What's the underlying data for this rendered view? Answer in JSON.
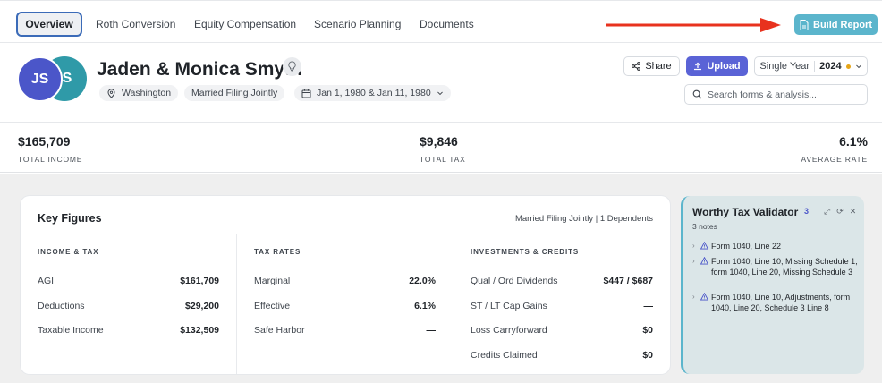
{
  "tabs": [
    "Overview",
    "Roth Conversion",
    "Equity Compensation",
    "Scenario Planning",
    "Documents"
  ],
  "build_report_label": "Build Report",
  "client": {
    "initials_a": "JS",
    "initials_b": "S",
    "name": "Jaden & Monica Smyth",
    "location": "Washington",
    "filing_status": "Married Filing Jointly",
    "dob": "Jan 1, 1980 & Jan 11, 1980"
  },
  "actions": {
    "share": "Share",
    "upload": "Upload",
    "year_mode": "Single Year",
    "year": "2024",
    "search_placeholder": "Search forms & analysis..."
  },
  "summary": [
    {
      "value": "$165,709",
      "label": "TOTAL INCOME"
    },
    {
      "value": "$9,846",
      "label": "TOTAL TAX"
    },
    {
      "value": "6.1%",
      "label": "AVERAGE RATE"
    }
  ],
  "key_figures": {
    "title": "Key Figures",
    "meta": "Married Filing Jointly  |  1 Dependents",
    "columns": [
      {
        "heading": "INCOME & TAX",
        "rows": [
          {
            "label": "AGI",
            "value": "$161,709"
          },
          {
            "label": "Deductions",
            "value": "$29,200"
          },
          {
            "label": "Taxable Income",
            "value": "$132,509"
          }
        ]
      },
      {
        "heading": "TAX RATES",
        "rows": [
          {
            "label": "Marginal",
            "value": "22.0%"
          },
          {
            "label": "Effective",
            "value": "6.1%"
          },
          {
            "label": "Safe Harbor",
            "value": "—"
          }
        ]
      },
      {
        "heading": "INVESTMENTS & CREDITS",
        "rows": [
          {
            "label": "Qual / Ord Dividends",
            "value": "$447 / $687"
          },
          {
            "label": "ST / LT Cap Gains",
            "value": "—"
          },
          {
            "label": "Loss Carryforward",
            "value": "$0"
          },
          {
            "label": "Credits Claimed",
            "value": "$0"
          }
        ]
      }
    ]
  },
  "validator": {
    "title": "Worthy Tax Validator",
    "count": "3",
    "notes_label": "3 notes",
    "notes": [
      "Form 1040, Line 22",
      "Form 1040, Line 10, Missing Schedule 1, form 1040, Line 20, Missing Schedule 3",
      "Form 1040, Line 10, Adjustments, form 1040, Line 20, Schedule 3 Line 8"
    ]
  },
  "colors": {
    "accent": "#5a63d6",
    "build_report": "#5bb5cc",
    "avatar_a": "#4b56c9",
    "avatar_b": "#2f9aa8",
    "arrow": "#e8321e"
  }
}
